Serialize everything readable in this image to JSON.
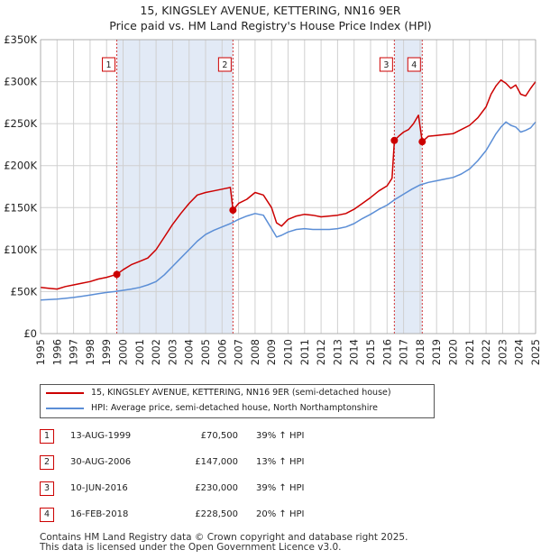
{
  "title": {
    "line1": "15, KINGSLEY AVENUE, KETTERING, NN16 9ER",
    "line2": "Price paid vs. HM Land Registry's House Price Index (HPI)"
  },
  "colors": {
    "property": "#cc0000",
    "hpi": "#5b8ed6",
    "shade": "#dde6f5",
    "grid": "#d0d0d0"
  },
  "chart_data": {
    "type": "line",
    "title": "Price paid vs. HM Land Registry's House Price Index (HPI)",
    "xlabel": "",
    "ylabel": "",
    "xlim": [
      1995,
      2025
    ],
    "ylim": [
      0,
      350000
    ],
    "y_ticks": [
      {
        "value": 0,
        "label": "£0"
      },
      {
        "value": 50000,
        "label": "£50K"
      },
      {
        "value": 100000,
        "label": "£100K"
      },
      {
        "value": 150000,
        "label": "£150K"
      },
      {
        "value": 200000,
        "label": "£200K"
      },
      {
        "value": 250000,
        "label": "£250K"
      },
      {
        "value": 300000,
        "label": "£300K"
      },
      {
        "value": 350000,
        "label": "£350K"
      }
    ],
    "x_ticks": [
      "1995",
      "1996",
      "1997",
      "1998",
      "1999",
      "2000",
      "2001",
      "2002",
      "2003",
      "2004",
      "2005",
      "2006",
      "2007",
      "2008",
      "2009",
      "2010",
      "2011",
      "2012",
      "2013",
      "2014",
      "2015",
      "2016",
      "2017",
      "2018",
      "2019",
      "2020",
      "2021",
      "2022",
      "2023",
      "2024",
      "2025"
    ],
    "grid": true,
    "shaded_spans": [
      [
        1999.62,
        2006.66
      ],
      [
        2016.44,
        2018.13
      ]
    ],
    "markers": [
      {
        "label": "1",
        "x": 1999.62,
        "y": 70500
      },
      {
        "label": "2",
        "x": 2006.66,
        "y": 147000
      },
      {
        "label": "3",
        "x": 2016.44,
        "y": 230000
      },
      {
        "label": "4",
        "x": 2018.13,
        "y": 228500
      }
    ],
    "series": [
      {
        "name": "15, KINGSLEY AVENUE, KETTERING, NN16 9ER (semi-detached house)",
        "color": "#cc0000",
        "x": [
          1995.0,
          1995.5,
          1996.0,
          1996.5,
          1997.0,
          1997.5,
          1998.0,
          1998.5,
          1999.0,
          1999.62,
          2000.0,
          2000.5,
          2001.0,
          2001.5,
          2002.0,
          2002.5,
          2003.0,
          2003.5,
          2004.0,
          2004.5,
          2005.0,
          2005.5,
          2006.0,
          2006.5,
          2006.66,
          2007.0,
          2007.5,
          2008.0,
          2008.5,
          2009.0,
          2009.3,
          2009.6,
          2010.0,
          2010.5,
          2011.0,
          2011.5,
          2012.0,
          2012.5,
          2013.0,
          2013.5,
          2014.0,
          2014.5,
          2015.0,
          2015.5,
          2016.0,
          2016.3,
          2016.44,
          2016.7,
          2017.0,
          2017.3,
          2017.6,
          2017.9,
          2018.13,
          2018.5,
          2019.0,
          2019.5,
          2020.0,
          2020.5,
          2021.0,
          2021.5,
          2022.0,
          2022.3,
          2022.6,
          2022.9,
          2023.2,
          2023.5,
          2023.8,
          2024.1,
          2024.4,
          2024.7,
          2025.0
        ],
        "y": [
          55000,
          54000,
          53000,
          56000,
          58000,
          60000,
          62000,
          65000,
          67000,
          70500,
          76000,
          82000,
          86000,
          90000,
          100000,
          115000,
          130000,
          143000,
          155000,
          165000,
          168000,
          170000,
          172000,
          174000,
          147000,
          155000,
          160000,
          168000,
          165000,
          150000,
          132000,
          128000,
          136000,
          140000,
          142000,
          141000,
          139000,
          140000,
          141000,
          143000,
          148000,
          155000,
          162000,
          170000,
          176000,
          185000,
          230000,
          235000,
          240000,
          243000,
          250000,
          260000,
          228500,
          235000,
          236000,
          237000,
          238000,
          243000,
          248000,
          257000,
          270000,
          285000,
          295000,
          302000,
          298000,
          292000,
          296000,
          285000,
          283000,
          292000,
          300000
        ]
      },
      {
        "name": "HPI: Average price, semi-detached house, North Northamptonshire",
        "color": "#5b8ed6",
        "x": [
          1995.0,
          1995.5,
          1996.0,
          1996.5,
          1997.0,
          1997.5,
          1998.0,
          1998.5,
          1999.0,
          1999.5,
          2000.0,
          2000.5,
          2001.0,
          2001.5,
          2002.0,
          2002.5,
          2003.0,
          2003.5,
          2004.0,
          2004.5,
          2005.0,
          2005.5,
          2006.0,
          2006.5,
          2007.0,
          2007.5,
          2008.0,
          2008.5,
          2009.0,
          2009.3,
          2009.6,
          2010.0,
          2010.5,
          2011.0,
          2011.5,
          2012.0,
          2012.5,
          2013.0,
          2013.5,
          2014.0,
          2014.5,
          2015.0,
          2015.5,
          2016.0,
          2016.5,
          2017.0,
          2017.5,
          2018.0,
          2018.5,
          2019.0,
          2019.5,
          2020.0,
          2020.5,
          2021.0,
          2021.5,
          2022.0,
          2022.3,
          2022.6,
          2022.9,
          2023.2,
          2023.5,
          2023.8,
          2024.1,
          2024.4,
          2024.7,
          2025.0
        ],
        "y": [
          40000,
          40500,
          41000,
          42000,
          43000,
          44500,
          46000,
          47500,
          49000,
          50000,
          51500,
          53000,
          55000,
          58000,
          62000,
          70000,
          80000,
          90000,
          100000,
          110000,
          118000,
          123000,
          127000,
          131000,
          136000,
          140000,
          143000,
          141000,
          125000,
          115000,
          117000,
          121000,
          124000,
          125000,
          124000,
          124000,
          124000,
          125000,
          127000,
          131000,
          137000,
          142000,
          148000,
          153000,
          160000,
          166000,
          172000,
          177000,
          180000,
          182000,
          184000,
          186000,
          190000,
          196000,
          206000,
          218000,
          228000,
          238000,
          246000,
          252000,
          248000,
          246000,
          240000,
          242000,
          245000,
          252000
        ]
      }
    ]
  },
  "legend": {
    "property": "15, KINGSLEY AVENUE, KETTERING, NN16 9ER (semi-detached house)",
    "hpi": "HPI: Average price, semi-detached house, North Northamptonshire"
  },
  "sales": [
    {
      "num": "1",
      "date": "13-AUG-1999",
      "price": "£70,500",
      "hpi": "39% ↑ HPI"
    },
    {
      "num": "2",
      "date": "30-AUG-2006",
      "price": "£147,000",
      "hpi": "13% ↑ HPI"
    },
    {
      "num": "3",
      "date": "10-JUN-2016",
      "price": "£230,000",
      "hpi": "39% ↑ HPI"
    },
    {
      "num": "4",
      "date": "16-FEB-2018",
      "price": "£228,500",
      "hpi": "20% ↑ HPI"
    }
  ],
  "footer": {
    "line1": "Contains HM Land Registry data © Crown copyright and database right 2025.",
    "line2": "This data is licensed under the Open Government Licence v3.0."
  }
}
